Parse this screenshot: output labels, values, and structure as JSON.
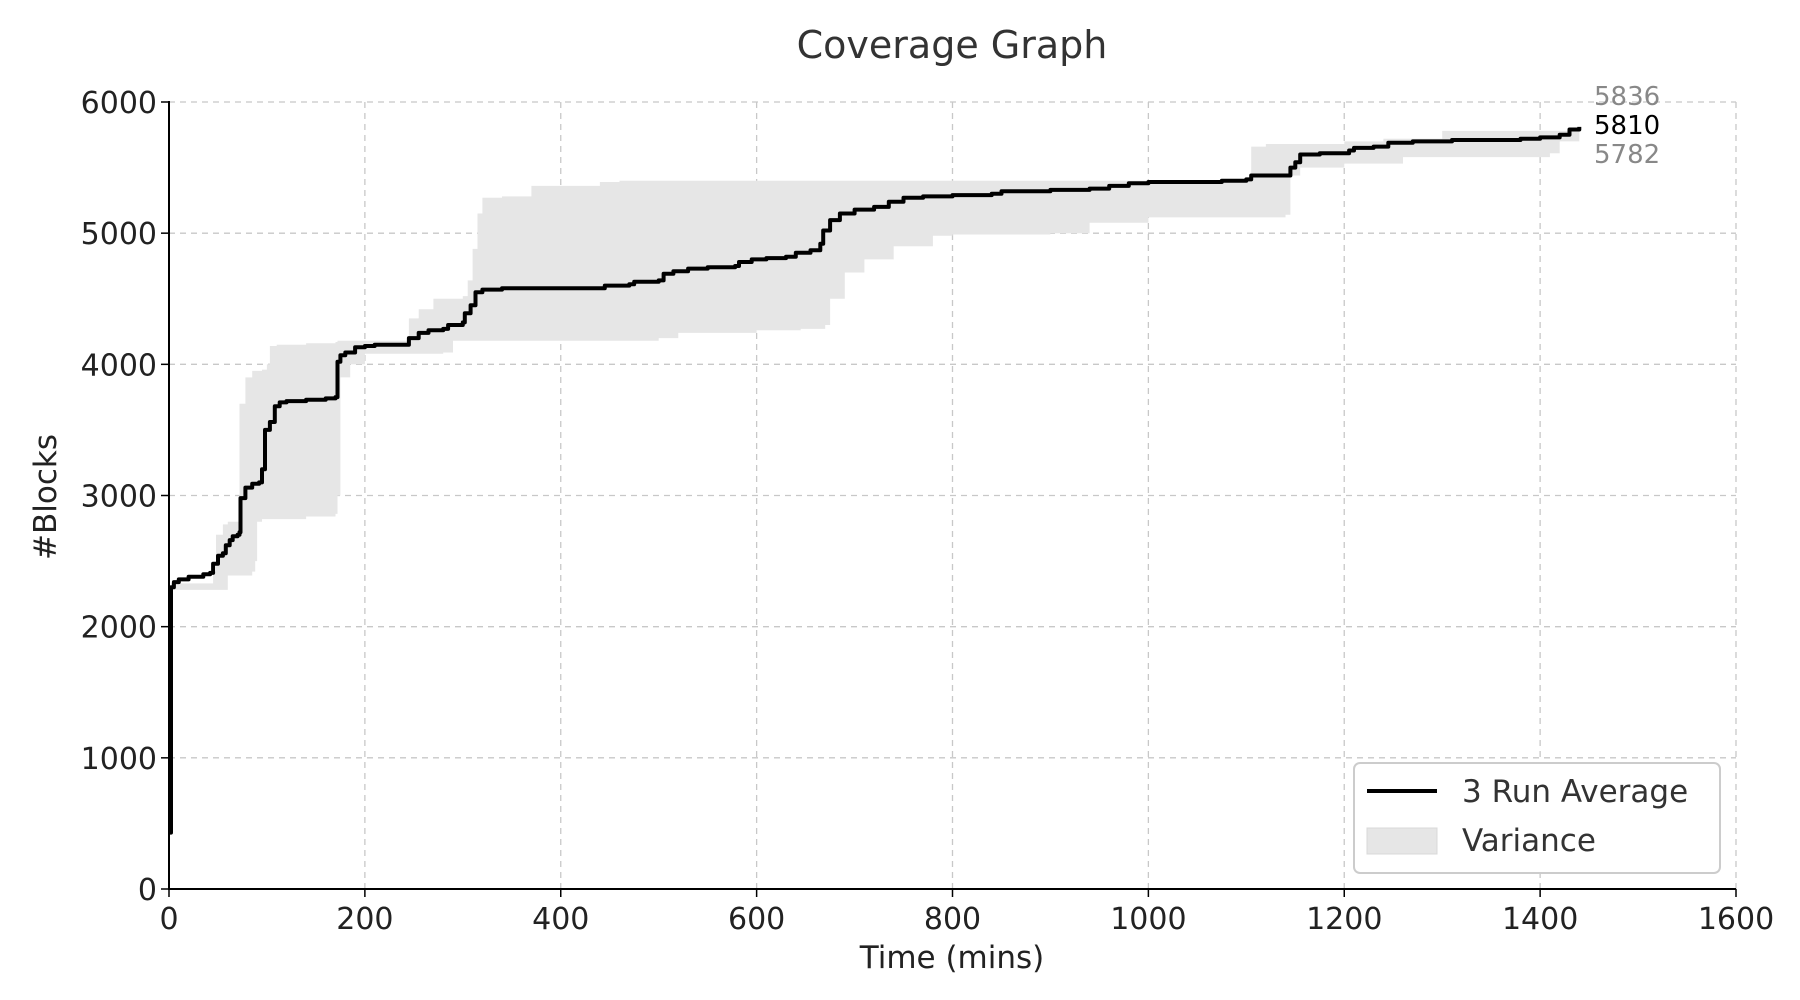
{
  "chart_data": {
    "type": "line",
    "title": "Coverage Graph",
    "xlabel": "Time (mins)",
    "ylabel": "#Blocks",
    "xlim": [
      0,
      1600
    ],
    "ylim": [
      0,
      6000
    ],
    "x_ticks": [
      0,
      200,
      400,
      600,
      800,
      1000,
      1200,
      1400,
      1600
    ],
    "y_ticks": [
      0,
      1000,
      2000,
      3000,
      4000,
      5000,
      6000
    ],
    "grid": true,
    "legend_position": "bottom-right",
    "colors": {
      "line": "#000000",
      "band": "#e6e6e6",
      "grid": "#c8c8c8",
      "end_label_bounds": "#888888",
      "end_label_mean": "#000000"
    },
    "series": [
      {
        "name": "3 Run Average",
        "kind": "line",
        "points": [
          [
            0,
            430
          ],
          [
            2,
            2300
          ],
          [
            5,
            2340
          ],
          [
            10,
            2360
          ],
          [
            20,
            2380
          ],
          [
            35,
            2400
          ],
          [
            42,
            2410
          ],
          [
            45,
            2480
          ],
          [
            50,
            2540
          ],
          [
            55,
            2560
          ],
          [
            58,
            2620
          ],
          [
            62,
            2660
          ],
          [
            65,
            2690
          ],
          [
            70,
            2700
          ],
          [
            72,
            2720
          ],
          [
            73,
            2980
          ],
          [
            78,
            3060
          ],
          [
            85,
            3090
          ],
          [
            92,
            3100
          ],
          [
            95,
            3200
          ],
          [
            98,
            3500
          ],
          [
            103,
            3560
          ],
          [
            108,
            3680
          ],
          [
            113,
            3710
          ],
          [
            120,
            3720
          ],
          [
            140,
            3730
          ],
          [
            160,
            3740
          ],
          [
            170,
            3750
          ],
          [
            172,
            4020
          ],
          [
            175,
            4070
          ],
          [
            180,
            4090
          ],
          [
            190,
            4130
          ],
          [
            200,
            4140
          ],
          [
            210,
            4150
          ],
          [
            240,
            4150
          ],
          [
            245,
            4200
          ],
          [
            255,
            4240
          ],
          [
            265,
            4260
          ],
          [
            280,
            4270
          ],
          [
            285,
            4300
          ],
          [
            300,
            4320
          ],
          [
            302,
            4390
          ],
          [
            308,
            4450
          ],
          [
            313,
            4550
          ],
          [
            320,
            4570
          ],
          [
            340,
            4580
          ],
          [
            360,
            4580
          ],
          [
            440,
            4580
          ],
          [
            445,
            4600
          ],
          [
            470,
            4610
          ],
          [
            475,
            4630
          ],
          [
            500,
            4640
          ],
          [
            505,
            4690
          ],
          [
            515,
            4710
          ],
          [
            530,
            4730
          ],
          [
            550,
            4740
          ],
          [
            578,
            4750
          ],
          [
            582,
            4780
          ],
          [
            595,
            4800
          ],
          [
            610,
            4810
          ],
          [
            630,
            4820
          ],
          [
            640,
            4850
          ],
          [
            655,
            4870
          ],
          [
            665,
            4920
          ],
          [
            668,
            5020
          ],
          [
            675,
            5100
          ],
          [
            685,
            5150
          ],
          [
            700,
            5180
          ],
          [
            720,
            5200
          ],
          [
            735,
            5240
          ],
          [
            750,
            5270
          ],
          [
            770,
            5280
          ],
          [
            800,
            5290
          ],
          [
            840,
            5300
          ],
          [
            850,
            5320
          ],
          [
            900,
            5330
          ],
          [
            940,
            5340
          ],
          [
            960,
            5360
          ],
          [
            980,
            5380
          ],
          [
            1000,
            5390
          ],
          [
            1070,
            5390
          ],
          [
            1075,
            5400
          ],
          [
            1100,
            5410
          ],
          [
            1105,
            5440
          ],
          [
            1140,
            5440
          ],
          [
            1145,
            5500
          ],
          [
            1150,
            5540
          ],
          [
            1155,
            5600
          ],
          [
            1175,
            5610
          ],
          [
            1205,
            5630
          ],
          [
            1210,
            5650
          ],
          [
            1230,
            5660
          ],
          [
            1245,
            5690
          ],
          [
            1270,
            5700
          ],
          [
            1310,
            5710
          ],
          [
            1380,
            5720
          ],
          [
            1400,
            5730
          ],
          [
            1420,
            5750
          ],
          [
            1430,
            5790
          ],
          [
            1440,
            5810
          ]
        ]
      },
      {
        "name": "Variance",
        "kind": "band",
        "upper": [
          [
            0,
            430
          ],
          [
            2,
            2330
          ],
          [
            45,
            2420
          ],
          [
            48,
            2700
          ],
          [
            55,
            2780
          ],
          [
            60,
            2800
          ],
          [
            70,
            2800
          ],
          [
            72,
            3700
          ],
          [
            78,
            3900
          ],
          [
            85,
            3950
          ],
          [
            95,
            3960
          ],
          [
            100,
            4000
          ],
          [
            103,
            4140
          ],
          [
            110,
            4150
          ],
          [
            140,
            4160
          ],
          [
            170,
            4170
          ],
          [
            172,
            4180
          ],
          [
            200,
            4180
          ],
          [
            240,
            4180
          ],
          [
            245,
            4350
          ],
          [
            255,
            4420
          ],
          [
            270,
            4500
          ],
          [
            300,
            4520
          ],
          [
            305,
            4640
          ],
          [
            310,
            4880
          ],
          [
            315,
            5150
          ],
          [
            320,
            5270
          ],
          [
            340,
            5280
          ],
          [
            370,
            5360
          ],
          [
            440,
            5390
          ],
          [
            460,
            5400
          ],
          [
            1000,
            5400
          ],
          [
            1100,
            5410
          ],
          [
            1105,
            5660
          ],
          [
            1120,
            5680
          ],
          [
            1200,
            5700
          ],
          [
            1240,
            5720
          ],
          [
            1300,
            5780
          ],
          [
            1440,
            5836
          ]
        ],
        "lower": [
          [
            0,
            430
          ],
          [
            2,
            2280
          ],
          [
            60,
            2390
          ],
          [
            85,
            2420
          ],
          [
            88,
            2500
          ],
          [
            90,
            2800
          ],
          [
            95,
            2820
          ],
          [
            140,
            2840
          ],
          [
            170,
            2860
          ],
          [
            172,
            3000
          ],
          [
            175,
            3900
          ],
          [
            185,
            4000
          ],
          [
            200,
            4080
          ],
          [
            280,
            4090
          ],
          [
            290,
            4180
          ],
          [
            440,
            4180
          ],
          [
            500,
            4200
          ],
          [
            520,
            4240
          ],
          [
            600,
            4260
          ],
          [
            645,
            4270
          ],
          [
            670,
            4300
          ],
          [
            675,
            4500
          ],
          [
            690,
            4700
          ],
          [
            710,
            4800
          ],
          [
            740,
            4900
          ],
          [
            780,
            4980
          ],
          [
            800,
            4990
          ],
          [
            900,
            5000
          ],
          [
            940,
            5080
          ],
          [
            1000,
            5120
          ],
          [
            1140,
            5140
          ],
          [
            1145,
            5440
          ],
          [
            1155,
            5500
          ],
          [
            1200,
            5530
          ],
          [
            1260,
            5580
          ],
          [
            1410,
            5610
          ],
          [
            1420,
            5700
          ],
          [
            1440,
            5782
          ]
        ]
      }
    ],
    "end_labels": {
      "upper": "5836",
      "mean": "5810",
      "lower": "5782"
    },
    "legend": {
      "line_label": "3 Run Average",
      "band_label": "Variance"
    }
  }
}
